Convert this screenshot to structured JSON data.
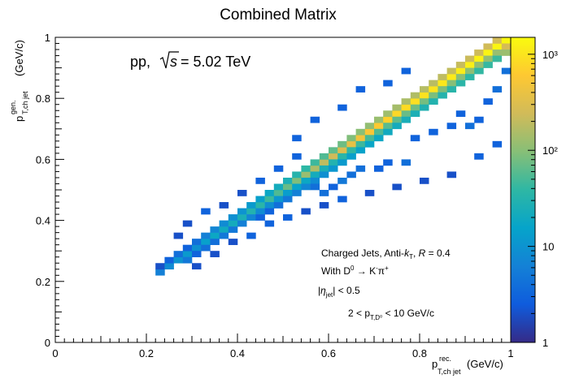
{
  "chart_data": {
    "type": "heatmap",
    "title": "Combined Matrix",
    "xlabel": {
      "main": "p",
      "sup": "rec.",
      "sub": "T,ch jet",
      "unit": "(GeV/c)"
    },
    "ylabel": {
      "main": "p",
      "sup": "gen.",
      "sub": "T,ch jet",
      "unit": "(GeV/c)"
    },
    "xlim": [
      0,
      1
    ],
    "ylim": [
      0,
      1
    ],
    "x_ticks": [
      "0",
      "0.2",
      "0.4",
      "0.6",
      "0.8",
      "1"
    ],
    "y_ticks": [
      "0",
      "0.2",
      "0.4",
      "0.6",
      "0.8",
      "1"
    ],
    "bins": 50,
    "zlim": [
      1,
      1500
    ],
    "z_scale": "log",
    "z_ticks": [
      "1",
      "10",
      "10²",
      "10³"
    ],
    "z_tick_values": [
      1,
      10,
      100,
      1000
    ],
    "colormap": [
      "#352a87",
      "#0f5cdd",
      "#1481d6",
      "#06a4ca",
      "#2eb7a4",
      "#87bf77",
      "#d1bb59",
      "#fec832",
      "#f9fb0e"
    ],
    "grid": false,
    "annotations": {
      "collision": "pp,",
      "energy_sqrt": "s",
      "energy_value": "= 5.02 TeV",
      "jets_prefix": "Charged Jets, Anti-",
      "jets_k": "k",
      "jets_k_sub": "T",
      "jets_r_prefix": ", ",
      "jets_r_symbol": "R",
      "jets_r_value": " = 0.4",
      "decay_prefix": "With D",
      "decay_prefix_sup": "0",
      "decay_arrow": " → K",
      "decay_k_sup": "-",
      "decay_pi": "π",
      "decay_pi_sup": "+",
      "eta_open": "|",
      "eta_symbol": "η",
      "eta_sub": "jet",
      "eta_close": "| < 0.5",
      "d0_range_prefix": "2 < p",
      "d0_range_sub": "T,D⁰",
      "d0_range_suffix": " < 10 GeV/c"
    },
    "cells": [
      [
        11,
        11,
        6
      ],
      [
        11,
        12,
        2
      ],
      [
        12,
        12,
        8
      ],
      [
        12,
        13,
        3
      ],
      [
        13,
        13,
        10
      ],
      [
        13,
        14,
        4
      ],
      [
        14,
        14,
        12
      ],
      [
        14,
        13,
        5
      ],
      [
        14,
        15,
        3
      ],
      [
        15,
        15,
        9
      ],
      [
        15,
        16,
        4
      ],
      [
        15,
        14,
        3
      ],
      [
        16,
        16,
        14
      ],
      [
        16,
        17,
        6
      ],
      [
        16,
        15,
        4
      ],
      [
        17,
        17,
        18
      ],
      [
        17,
        18,
        7
      ],
      [
        17,
        16,
        4
      ],
      [
        18,
        18,
        20
      ],
      [
        18,
        19,
        8
      ],
      [
        18,
        17,
        5
      ],
      [
        19,
        19,
        22
      ],
      [
        19,
        20,
        9
      ],
      [
        19,
        18,
        5
      ],
      [
        20,
        20,
        25
      ],
      [
        20,
        21,
        10
      ],
      [
        20,
        19,
        6
      ],
      [
        21,
        21,
        30
      ],
      [
        21,
        22,
        12
      ],
      [
        21,
        20,
        7
      ],
      [
        22,
        22,
        35
      ],
      [
        22,
        23,
        14
      ],
      [
        22,
        21,
        8
      ],
      [
        22,
        20,
        3
      ],
      [
        23,
        23,
        45
      ],
      [
        23,
        24,
        18
      ],
      [
        23,
        22,
        9
      ],
      [
        23,
        21,
        3
      ],
      [
        24,
        24,
        55
      ],
      [
        24,
        25,
        22
      ],
      [
        24,
        23,
        11
      ],
      [
        24,
        22,
        4
      ],
      [
        25,
        25,
        70
      ],
      [
        25,
        26,
        26
      ],
      [
        25,
        24,
        13
      ],
      [
        25,
        23,
        5
      ],
      [
        26,
        26,
        90
      ],
      [
        26,
        27,
        32
      ],
      [
        26,
        25,
        15
      ],
      [
        26,
        24,
        6
      ],
      [
        27,
        27,
        120
      ],
      [
        27,
        28,
        38
      ],
      [
        27,
        26,
        18
      ],
      [
        27,
        25,
        7
      ],
      [
        28,
        28,
        150
      ],
      [
        28,
        29,
        45
      ],
      [
        28,
        27,
        22
      ],
      [
        28,
        26,
        8
      ],
      [
        29,
        29,
        190
      ],
      [
        29,
        30,
        55
      ],
      [
        29,
        28,
        25
      ],
      [
        29,
        27,
        9
      ],
      [
        30,
        30,
        240
      ],
      [
        30,
        31,
        65
      ],
      [
        30,
        29,
        30
      ],
      [
        30,
        28,
        11
      ],
      [
        31,
        31,
        300
      ],
      [
        31,
        32,
        75
      ],
      [
        31,
        30,
        35
      ],
      [
        31,
        29,
        12
      ],
      [
        32,
        32,
        380
      ],
      [
        32,
        33,
        90
      ],
      [
        32,
        31,
        40
      ],
      [
        32,
        30,
        14
      ],
      [
        33,
        33,
        460
      ],
      [
        33,
        34,
        100
      ],
      [
        33,
        32,
        45
      ],
      [
        33,
        31,
        15
      ],
      [
        34,
        34,
        540
      ],
      [
        34,
        35,
        110
      ],
      [
        34,
        33,
        50
      ],
      [
        34,
        32,
        17
      ],
      [
        35,
        35,
        620
      ],
      [
        35,
        36,
        120
      ],
      [
        35,
        34,
        55
      ],
      [
        35,
        33,
        18
      ],
      [
        36,
        36,
        700
      ],
      [
        36,
        37,
        130
      ],
      [
        36,
        35,
        60
      ],
      [
        36,
        34,
        20
      ],
      [
        37,
        37,
        780
      ],
      [
        37,
        38,
        140
      ],
      [
        37,
        36,
        65
      ],
      [
        37,
        35,
        22
      ],
      [
        38,
        38,
        850
      ],
      [
        38,
        39,
        150
      ],
      [
        38,
        37,
        70
      ],
      [
        38,
        36,
        24
      ],
      [
        39,
        39,
        900
      ],
      [
        39,
        40,
        160
      ],
      [
        39,
        38,
        75
      ],
      [
        39,
        37,
        26
      ],
      [
        40,
        40,
        950
      ],
      [
        40,
        41,
        170
      ],
      [
        40,
        39,
        80
      ],
      [
        40,
        38,
        28
      ],
      [
        41,
        41,
        1000
      ],
      [
        41,
        42,
        180
      ],
      [
        41,
        40,
        85
      ],
      [
        41,
        39,
        30
      ],
      [
        42,
        42,
        1050
      ],
      [
        42,
        43,
        190
      ],
      [
        42,
        41,
        90
      ],
      [
        42,
        40,
        32
      ],
      [
        43,
        43,
        1100
      ],
      [
        43,
        44,
        200
      ],
      [
        43,
        42,
        95
      ],
      [
        43,
        41,
        34
      ],
      [
        44,
        44,
        1150
      ],
      [
        44,
        45,
        210
      ],
      [
        44,
        43,
        100
      ],
      [
        44,
        42,
        36
      ],
      [
        45,
        45,
        1200
      ],
      [
        45,
        46,
        220
      ],
      [
        45,
        44,
        105
      ],
      [
        45,
        43,
        38
      ],
      [
        46,
        46,
        1250
      ],
      [
        46,
        47,
        230
      ],
      [
        46,
        45,
        110
      ],
      [
        46,
        44,
        40
      ],
      [
        47,
        47,
        1300
      ],
      [
        47,
        48,
        240
      ],
      [
        47,
        46,
        115
      ],
      [
        47,
        45,
        42
      ],
      [
        48,
        48,
        1350
      ],
      [
        48,
        49,
        250
      ],
      [
        48,
        47,
        120
      ],
      [
        48,
        46,
        44
      ],
      [
        49,
        49,
        1400
      ],
      [
        49,
        48,
        260
      ],
      [
        49,
        47,
        125
      ],
      [
        24,
        28,
        3
      ],
      [
        26,
        30,
        3
      ],
      [
        28,
        25,
        4
      ],
      [
        29,
        24,
        4
      ],
      [
        30,
        25,
        3
      ],
      [
        31,
        26,
        5
      ],
      [
        32,
        27,
        4
      ],
      [
        33,
        28,
        4
      ],
      [
        35,
        28,
        3
      ],
      [
        36,
        29,
        3
      ],
      [
        38,
        29,
        4
      ],
      [
        39,
        33,
        3
      ],
      [
        41,
        34,
        3
      ],
      [
        43,
        35,
        3
      ],
      [
        44,
        37,
        3
      ],
      [
        45,
        35,
        4
      ],
      [
        46,
        36,
        3
      ],
      [
        47,
        39,
        3
      ],
      [
        48,
        41,
        4
      ],
      [
        49,
        44,
        4
      ],
      [
        38,
        44,
        3
      ],
      [
        36,
        42,
        3
      ],
      [
        33,
        41,
        3
      ],
      [
        31,
        38,
        3
      ],
      [
        28,
        36,
        3
      ],
      [
        26,
        33,
        3
      ],
      [
        22,
        26,
        3
      ],
      [
        20,
        24,
        2
      ],
      [
        18,
        22,
        2
      ],
      [
        16,
        21,
        3
      ],
      [
        14,
        19,
        2
      ],
      [
        13,
        17,
        2
      ],
      [
        15,
        12,
        2
      ],
      [
        17,
        14,
        2
      ],
      [
        19,
        16,
        2
      ],
      [
        21,
        17,
        3
      ],
      [
        23,
        19,
        3
      ],
      [
        25,
        20,
        3
      ],
      [
        27,
        21,
        2
      ],
      [
        29,
        22,
        2
      ],
      [
        31,
        23,
        3
      ],
      [
        34,
        24,
        2
      ],
      [
        37,
        25,
        2
      ],
      [
        40,
        26,
        2
      ],
      [
        43,
        27,
        2
      ],
      [
        46,
        30,
        3
      ],
      [
        48,
        32,
        3
      ],
      [
        50,
        40,
        2
      ]
    ]
  }
}
